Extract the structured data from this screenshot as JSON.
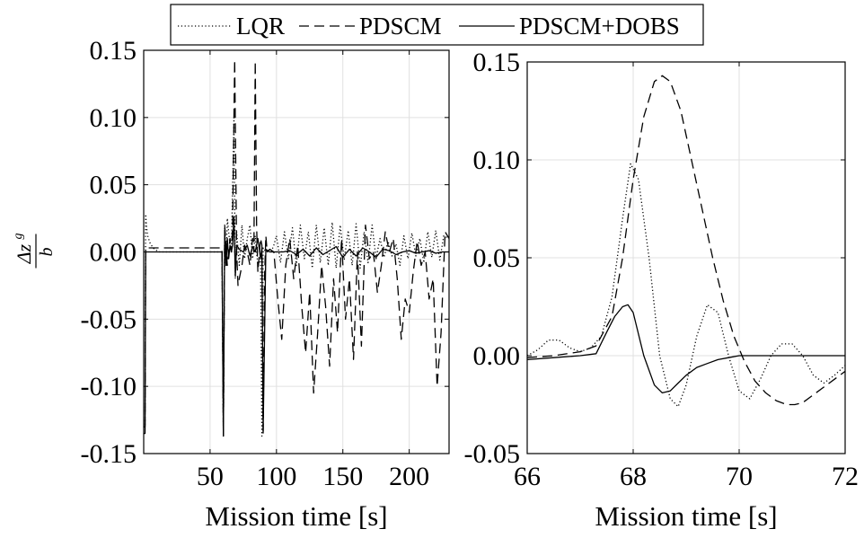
{
  "legend": {
    "placement": "top-center",
    "entries": [
      {
        "label": "LQR",
        "style": "dotted"
      },
      {
        "label": "PDSCM",
        "style": "dashed"
      },
      {
        "label": "PDSCM+DOBS",
        "style": "solid"
      }
    ]
  },
  "colors": {
    "lines": "#000000",
    "grid": "#e0e0e0",
    "background": "#ffffff"
  },
  "chart_data": [
    {
      "type": "line",
      "xlabel": "Mission time [s]",
      "ylabel": "Δz^g / b",
      "ylabel_numerator": "Δz",
      "ylabel_superscript": "g",
      "ylabel_denominator": "b",
      "xlim": [
        0,
        230
      ],
      "ylim": [
        -0.15,
        0.15
      ],
      "xticks": [
        50,
        100,
        150,
        200
      ],
      "yticks": [
        -0.15,
        -0.1,
        -0.05,
        0.0,
        0.05,
        0.1,
        0.15
      ],
      "yticklabels": [
        "-0.15",
        "-0.10",
        "-0.05",
        "0.00",
        "0.05",
        "0.10",
        "0.15"
      ],
      "grid": true,
      "series": [
        {
          "name": "LQR",
          "style": "dotted",
          "x": [
            0,
            1,
            1.5,
            2,
            3,
            5,
            8,
            12,
            59,
            60,
            61,
            62,
            63,
            65,
            66,
            68,
            69,
            70,
            72,
            74,
            76,
            78,
            80,
            82,
            84,
            85,
            86,
            88,
            89,
            90,
            92,
            94,
            96,
            98,
            100,
            103,
            106,
            109,
            112,
            115,
            118,
            121,
            124,
            127,
            130,
            133,
            136,
            139,
            142,
            145,
            148,
            151,
            154,
            157,
            160,
            163,
            166,
            169,
            172,
            175,
            178,
            181,
            184,
            187,
            190,
            193,
            196,
            199,
            202,
            205,
            208,
            211,
            214,
            217,
            220,
            223,
            226,
            230
          ],
          "y": [
            -0.13,
            -0.13,
            0.028,
            0.02,
            0.012,
            0.006,
            0.002,
            0.0,
            0.0,
            -0.137,
            0.02,
            -0.01,
            0.025,
            0.005,
            0.0,
            0.1,
            -0.02,
            0.015,
            -0.01,
            0.02,
            -0.005,
            0.01,
            0.02,
            -0.005,
            0.012,
            0.0,
            -0.01,
            -0.005,
            -0.137,
            0.003,
            0.0,
            0.002,
            0.0,
            0.005,
            0.012,
            -0.008,
            0.015,
            -0.005,
            0.018,
            -0.01,
            0.02,
            -0.005,
            0.015,
            -0.012,
            0.02,
            -0.008,
            0.018,
            -0.01,
            0.022,
            -0.012,
            0.02,
            -0.006,
            0.016,
            -0.01,
            0.021,
            -0.012,
            0.015,
            -0.008,
            0.02,
            -0.005,
            0.01,
            -0.004,
            0.008,
            -0.003,
            0.006,
            -0.01,
            0.012,
            -0.005,
            0.014,
            -0.003,
            0.01,
            -0.008,
            0.015,
            -0.004,
            0.016,
            -0.006,
            0.012,
            0.01
          ]
        },
        {
          "name": "PDSCM",
          "style": "dashed",
          "x": [
            0,
            1,
            1.5,
            3,
            5,
            8,
            59,
            60,
            61,
            63,
            65,
            66,
            67,
            68,
            68.5,
            70,
            71,
            72,
            74,
            76,
            78,
            80,
            82,
            83,
            84,
            85,
            86,
            88,
            89,
            90,
            91,
            92,
            93,
            95,
            98,
            101,
            104,
            107,
            110,
            113,
            116,
            119,
            122,
            125,
            128,
            131,
            134,
            137,
            140,
            143,
            146,
            149,
            152,
            155,
            158,
            161,
            164,
            167,
            170,
            173,
            176,
            179,
            182,
            185,
            188,
            191,
            194,
            197,
            200,
            203,
            206,
            209,
            212,
            215,
            218,
            221,
            224,
            227,
            230
          ],
          "y": [
            -0.13,
            -0.13,
            0.003,
            0.003,
            0.003,
            0.003,
            0.003,
            -0.137,
            0.02,
            -0.01,
            0.01,
            0.0,
            0.02,
            0.1,
            0.143,
            0.0,
            -0.025,
            -0.02,
            -0.01,
            0.005,
            0.0,
            -0.01,
            0.01,
            0.0,
            0.142,
            0.02,
            -0.015,
            0.01,
            0.005,
            -0.137,
            -0.02,
            0.012,
            0.0,
            0.002,
            0.0,
            -0.035,
            -0.065,
            -0.01,
            0.01,
            -0.02,
            0.005,
            -0.04,
            -0.075,
            -0.03,
            -0.105,
            -0.06,
            -0.01,
            -0.04,
            -0.085,
            -0.02,
            -0.06,
            0.01,
            -0.05,
            -0.02,
            -0.08,
            0.0,
            -0.07,
            0.02,
            -0.005,
            0.0,
            -0.03,
            -0.01,
            0.015,
            0.0,
            0.01,
            -0.02,
            -0.065,
            -0.035,
            -0.045,
            -0.015,
            0.008,
            -0.01,
            0.0,
            -0.035,
            -0.02,
            -0.1,
            -0.06,
            0.015,
            0.01
          ]
        },
        {
          "name": "PDSCM+DOBS",
          "style": "solid",
          "x": [
            0,
            1,
            1.5,
            3,
            10,
            59,
            60,
            61,
            62,
            63,
            64,
            65,
            66,
            67,
            68,
            69,
            70,
            72,
            75,
            78,
            80,
            82,
            84,
            86,
            88,
            89,
            90,
            92,
            95,
            100,
            105,
            110,
            115,
            120,
            125,
            130,
            135,
            140,
            145,
            150,
            155,
            160,
            165,
            170,
            175,
            180,
            185,
            190,
            195,
            200,
            205,
            210,
            215,
            220,
            225,
            230
          ],
          "y": [
            -0.135,
            -0.135,
            0.0,
            0.0,
            0.0,
            0.0,
            -0.137,
            0.015,
            -0.01,
            0.01,
            -0.005,
            0.005,
            0.0,
            0.005,
            0.026,
            -0.018,
            0.005,
            0.002,
            0.0,
            0.005,
            -0.003,
            0.004,
            0.0,
            0.01,
            -0.005,
            0.003,
            -0.133,
            0.002,
            0.0,
            0.0,
            0.0,
            0.001,
            -0.002,
            0.002,
            -0.003,
            0.003,
            -0.002,
            0.001,
            0.004,
            -0.004,
            0.002,
            -0.003,
            0.003,
            0.0,
            -0.004,
            0.002,
            0.001,
            -0.002,
            0.0,
            0.001,
            -0.001,
            0.0,
            0.001,
            -0.001,
            0.0,
            0.0
          ]
        }
      ]
    },
    {
      "type": "line",
      "xlabel": "Mission time [s]",
      "ylabel": "",
      "xlim": [
        66,
        72
      ],
      "ylim": [
        -0.05,
        0.15
      ],
      "xticks": [
        66,
        68,
        70,
        72
      ],
      "yticks": [
        -0.05,
        0.0,
        0.05,
        0.1,
        0.15
      ],
      "yticklabels": [
        "-0.05",
        "0.00",
        "0.05",
        "0.10",
        "0.15"
      ],
      "grid": true,
      "series": [
        {
          "name": "LQR",
          "style": "dotted",
          "x": [
            66,
            66.2,
            66.4,
            66.6,
            66.8,
            67.0,
            67.2,
            67.4,
            67.6,
            67.8,
            67.95,
            68.1,
            68.3,
            68.5,
            68.7,
            68.85,
            69.0,
            69.2,
            69.4,
            69.6,
            69.8,
            70.0,
            70.2,
            70.4,
            70.6,
            70.8,
            71.0,
            71.2,
            71.4,
            71.6,
            71.8,
            72.0
          ],
          "y": [
            0.0,
            0.003,
            0.008,
            0.008,
            0.004,
            0.002,
            0.004,
            0.01,
            0.03,
            0.07,
            0.098,
            0.09,
            0.05,
            0.0,
            -0.022,
            -0.026,
            -0.015,
            0.01,
            0.026,
            0.022,
            0.0,
            -0.018,
            -0.022,
            -0.012,
            0.0,
            0.006,
            0.006,
            0.0,
            -0.01,
            -0.014,
            -0.01,
            -0.005
          ]
        },
        {
          "name": "PDSCM",
          "style": "dashed",
          "x": [
            66,
            66.5,
            67.0,
            67.3,
            67.6,
            67.8,
            68.0,
            68.2,
            68.4,
            68.55,
            68.7,
            68.9,
            69.1,
            69.3,
            69.5,
            69.7,
            69.9,
            70.1,
            70.3,
            70.5,
            70.7,
            70.9,
            71.05,
            71.2,
            71.4,
            71.6,
            71.8,
            72.0
          ],
          "y": [
            -0.001,
            0.0,
            0.002,
            0.005,
            0.02,
            0.05,
            0.09,
            0.122,
            0.14,
            0.143,
            0.14,
            0.125,
            0.1,
            0.075,
            0.05,
            0.028,
            0.01,
            -0.003,
            -0.013,
            -0.019,
            -0.023,
            -0.025,
            -0.025,
            -0.024,
            -0.02,
            -0.016,
            -0.012,
            -0.008
          ]
        },
        {
          "name": "PDSCM+DOBS",
          "style": "solid",
          "x": [
            66,
            66.5,
            67.0,
            67.3,
            67.5,
            67.65,
            67.8,
            67.9,
            68.0,
            68.2,
            68.4,
            68.55,
            68.7,
            68.85,
            69.0,
            69.2,
            69.4,
            69.6,
            69.8,
            70.0,
            70.3,
            70.6,
            71.0,
            71.5,
            72.0
          ],
          "y": [
            -0.002,
            -0.001,
            0.0,
            0.001,
            0.012,
            0.02,
            0.025,
            0.026,
            0.022,
            0.0,
            -0.015,
            -0.019,
            -0.018,
            -0.014,
            -0.01,
            -0.006,
            -0.004,
            -0.002,
            -0.001,
            0.0,
            0.0,
            0.0,
            0.0,
            0.0,
            0.0
          ]
        }
      ]
    }
  ]
}
